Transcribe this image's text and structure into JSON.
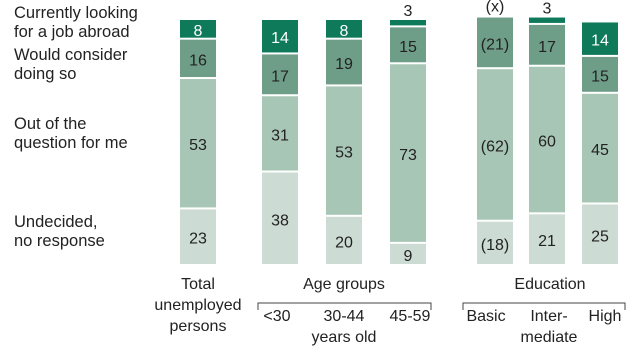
{
  "chart_data": {
    "type": "bar",
    "stacked": true,
    "normalized": "percent",
    "series": [
      {
        "name": "Currently looking for a job abroad",
        "label_lines": [
          "Currently looking",
          "for a job abroad"
        ],
        "color": "#0e7a5a",
        "values": [
          8,
          14,
          8,
          3,
          null,
          3,
          14
        ],
        "labels": [
          "8",
          "14",
          "8",
          "3",
          "(x)",
          "3",
          "14"
        ]
      },
      {
        "name": "Would consider doing so",
        "label_lines": [
          "Would consider",
          "doing so"
        ],
        "color": "#6f9e88",
        "values": [
          16,
          17,
          19,
          15,
          21,
          17,
          15
        ],
        "labels": [
          "16",
          "17",
          "19",
          "15",
          "(21)",
          "17",
          "15"
        ]
      },
      {
        "name": "Out of the question for me",
        "label_lines": [
          "Out of the",
          "question for me"
        ],
        "color": "#a8c6b6",
        "values": [
          53,
          31,
          53,
          73,
          62,
          60,
          45
        ],
        "labels": [
          "53",
          "31",
          "53",
          "73",
          "(62)",
          "60",
          "45"
        ]
      },
      {
        "name": "Undecided, no response",
        "label_lines": [
          "Undecided,",
          "no response"
        ],
        "color": "#ccdbd3",
        "values": [
          23,
          38,
          20,
          9,
          18,
          21,
          25
        ],
        "labels": [
          "23",
          "38",
          "20",
          "9",
          "(18)",
          "21",
          "25"
        ]
      }
    ],
    "bars": [
      {
        "group": 0,
        "label": ""
      },
      {
        "group": 1,
        "label": "<30"
      },
      {
        "group": 1,
        "label": "30-44"
      },
      {
        "group": 1,
        "label": "45-59"
      },
      {
        "group": 2,
        "label": "Basic"
      },
      {
        "group": 2,
        "label": "Inter-"
      },
      {
        "group": 2,
        "label": "High"
      }
    ],
    "groups": [
      {
        "title_lines": [
          "Total",
          "unemployed",
          "persons"
        ],
        "footer": ""
      },
      {
        "title_lines": [
          "Age groups"
        ],
        "footer": "years old"
      },
      {
        "title_lines": [
          "Education"
        ],
        "footer": "mediate"
      }
    ]
  }
}
